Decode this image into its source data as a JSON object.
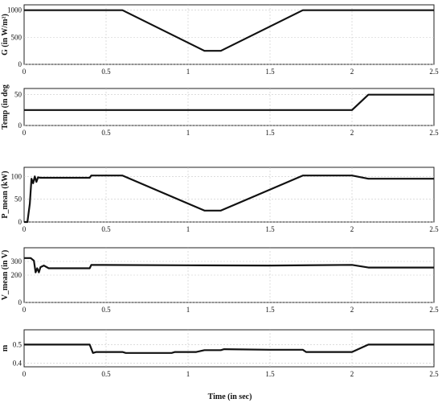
{
  "chart_data": [
    {
      "type": "line",
      "ylabel": "G (in W/m²)",
      "xlim": [
        0,
        2.5
      ],
      "ylim": [
        0,
        1100
      ],
      "xticks": [
        "0",
        "0.5",
        "1",
        "1.5",
        "2",
        "2.5"
      ],
      "yticks": [
        "0",
        "500",
        "1000"
      ],
      "x": [
        0,
        0.6,
        1.1,
        1.2,
        1.7,
        2.5
      ],
      "y": [
        1000,
        1000,
        250,
        250,
        1000,
        1000
      ]
    },
    {
      "type": "line",
      "ylabel": "Temp (in deg",
      "xlim": [
        0,
        2.5
      ],
      "ylim": [
        0,
        60
      ],
      "xticks": [
        "0",
        "0.5",
        "1",
        "1.5",
        "2",
        "2.5"
      ],
      "yticks": [
        "0",
        "50"
      ],
      "x": [
        0,
        2.0,
        2.1,
        2.5
      ],
      "y": [
        25,
        25,
        50,
        50
      ]
    },
    {
      "type": "line",
      "ylabel": "P_mean (kW)",
      "xlim": [
        0,
        2.5
      ],
      "ylim": [
        0,
        120
      ],
      "xticks": [
        "0",
        "0.5",
        "1",
        "1.5",
        "2",
        "2.5"
      ],
      "yticks": [
        "0",
        "50",
        "100"
      ],
      "x": [
        0,
        0.02,
        0.035,
        0.045,
        0.055,
        0.065,
        0.075,
        0.085,
        0.1,
        0.4,
        0.41,
        0.6,
        1.1,
        1.2,
        1.7,
        2.0,
        2.1,
        2.5
      ],
      "y": [
        0,
        0,
        40,
        95,
        85,
        100,
        88,
        98,
        97,
        97,
        102,
        102,
        25,
        25,
        102,
        102,
        95,
        95
      ]
    },
    {
      "type": "line",
      "ylabel": "V_mean (in V)",
      "xlim": [
        0,
        2.5
      ],
      "ylim": [
        0,
        400
      ],
      "xticks": [
        "0",
        "0.5",
        "1",
        "1.5",
        "2",
        "2.5"
      ],
      "yticks": [
        "0",
        "200",
        "300"
      ],
      "x": [
        0,
        0.04,
        0.06,
        0.07,
        0.08,
        0.09,
        0.1,
        0.12,
        0.15,
        0.4,
        0.41,
        1.0,
        1.5,
        2.0,
        2.1,
        2.5
      ],
      "y": [
        325,
        325,
        305,
        220,
        250,
        220,
        258,
        270,
        250,
        250,
        275,
        272,
        270,
        275,
        255,
        255
      ]
    },
    {
      "type": "line",
      "ylabel": "m",
      "xlim": [
        0,
        2.5
      ],
      "ylim": [
        0.38,
        0.58
      ],
      "xticks": [
        "0",
        "0.5",
        "1",
        "1.5",
        "2",
        "2.5"
      ],
      "yticks": [
        "0.4",
        "0.5"
      ],
      "x": [
        0,
        0.4,
        0.42,
        0.44,
        0.6,
        0.62,
        0.9,
        0.92,
        1.05,
        1.1,
        1.2,
        1.22,
        1.5,
        1.7,
        1.72,
        2.0,
        2.1,
        2.5
      ],
      "y": [
        0.5,
        0.5,
        0.455,
        0.46,
        0.46,
        0.455,
        0.455,
        0.46,
        0.46,
        0.47,
        0.47,
        0.475,
        0.472,
        0.472,
        0.46,
        0.46,
        0.5,
        0.5
      ]
    }
  ],
  "xlabel": "Time (in sec)"
}
